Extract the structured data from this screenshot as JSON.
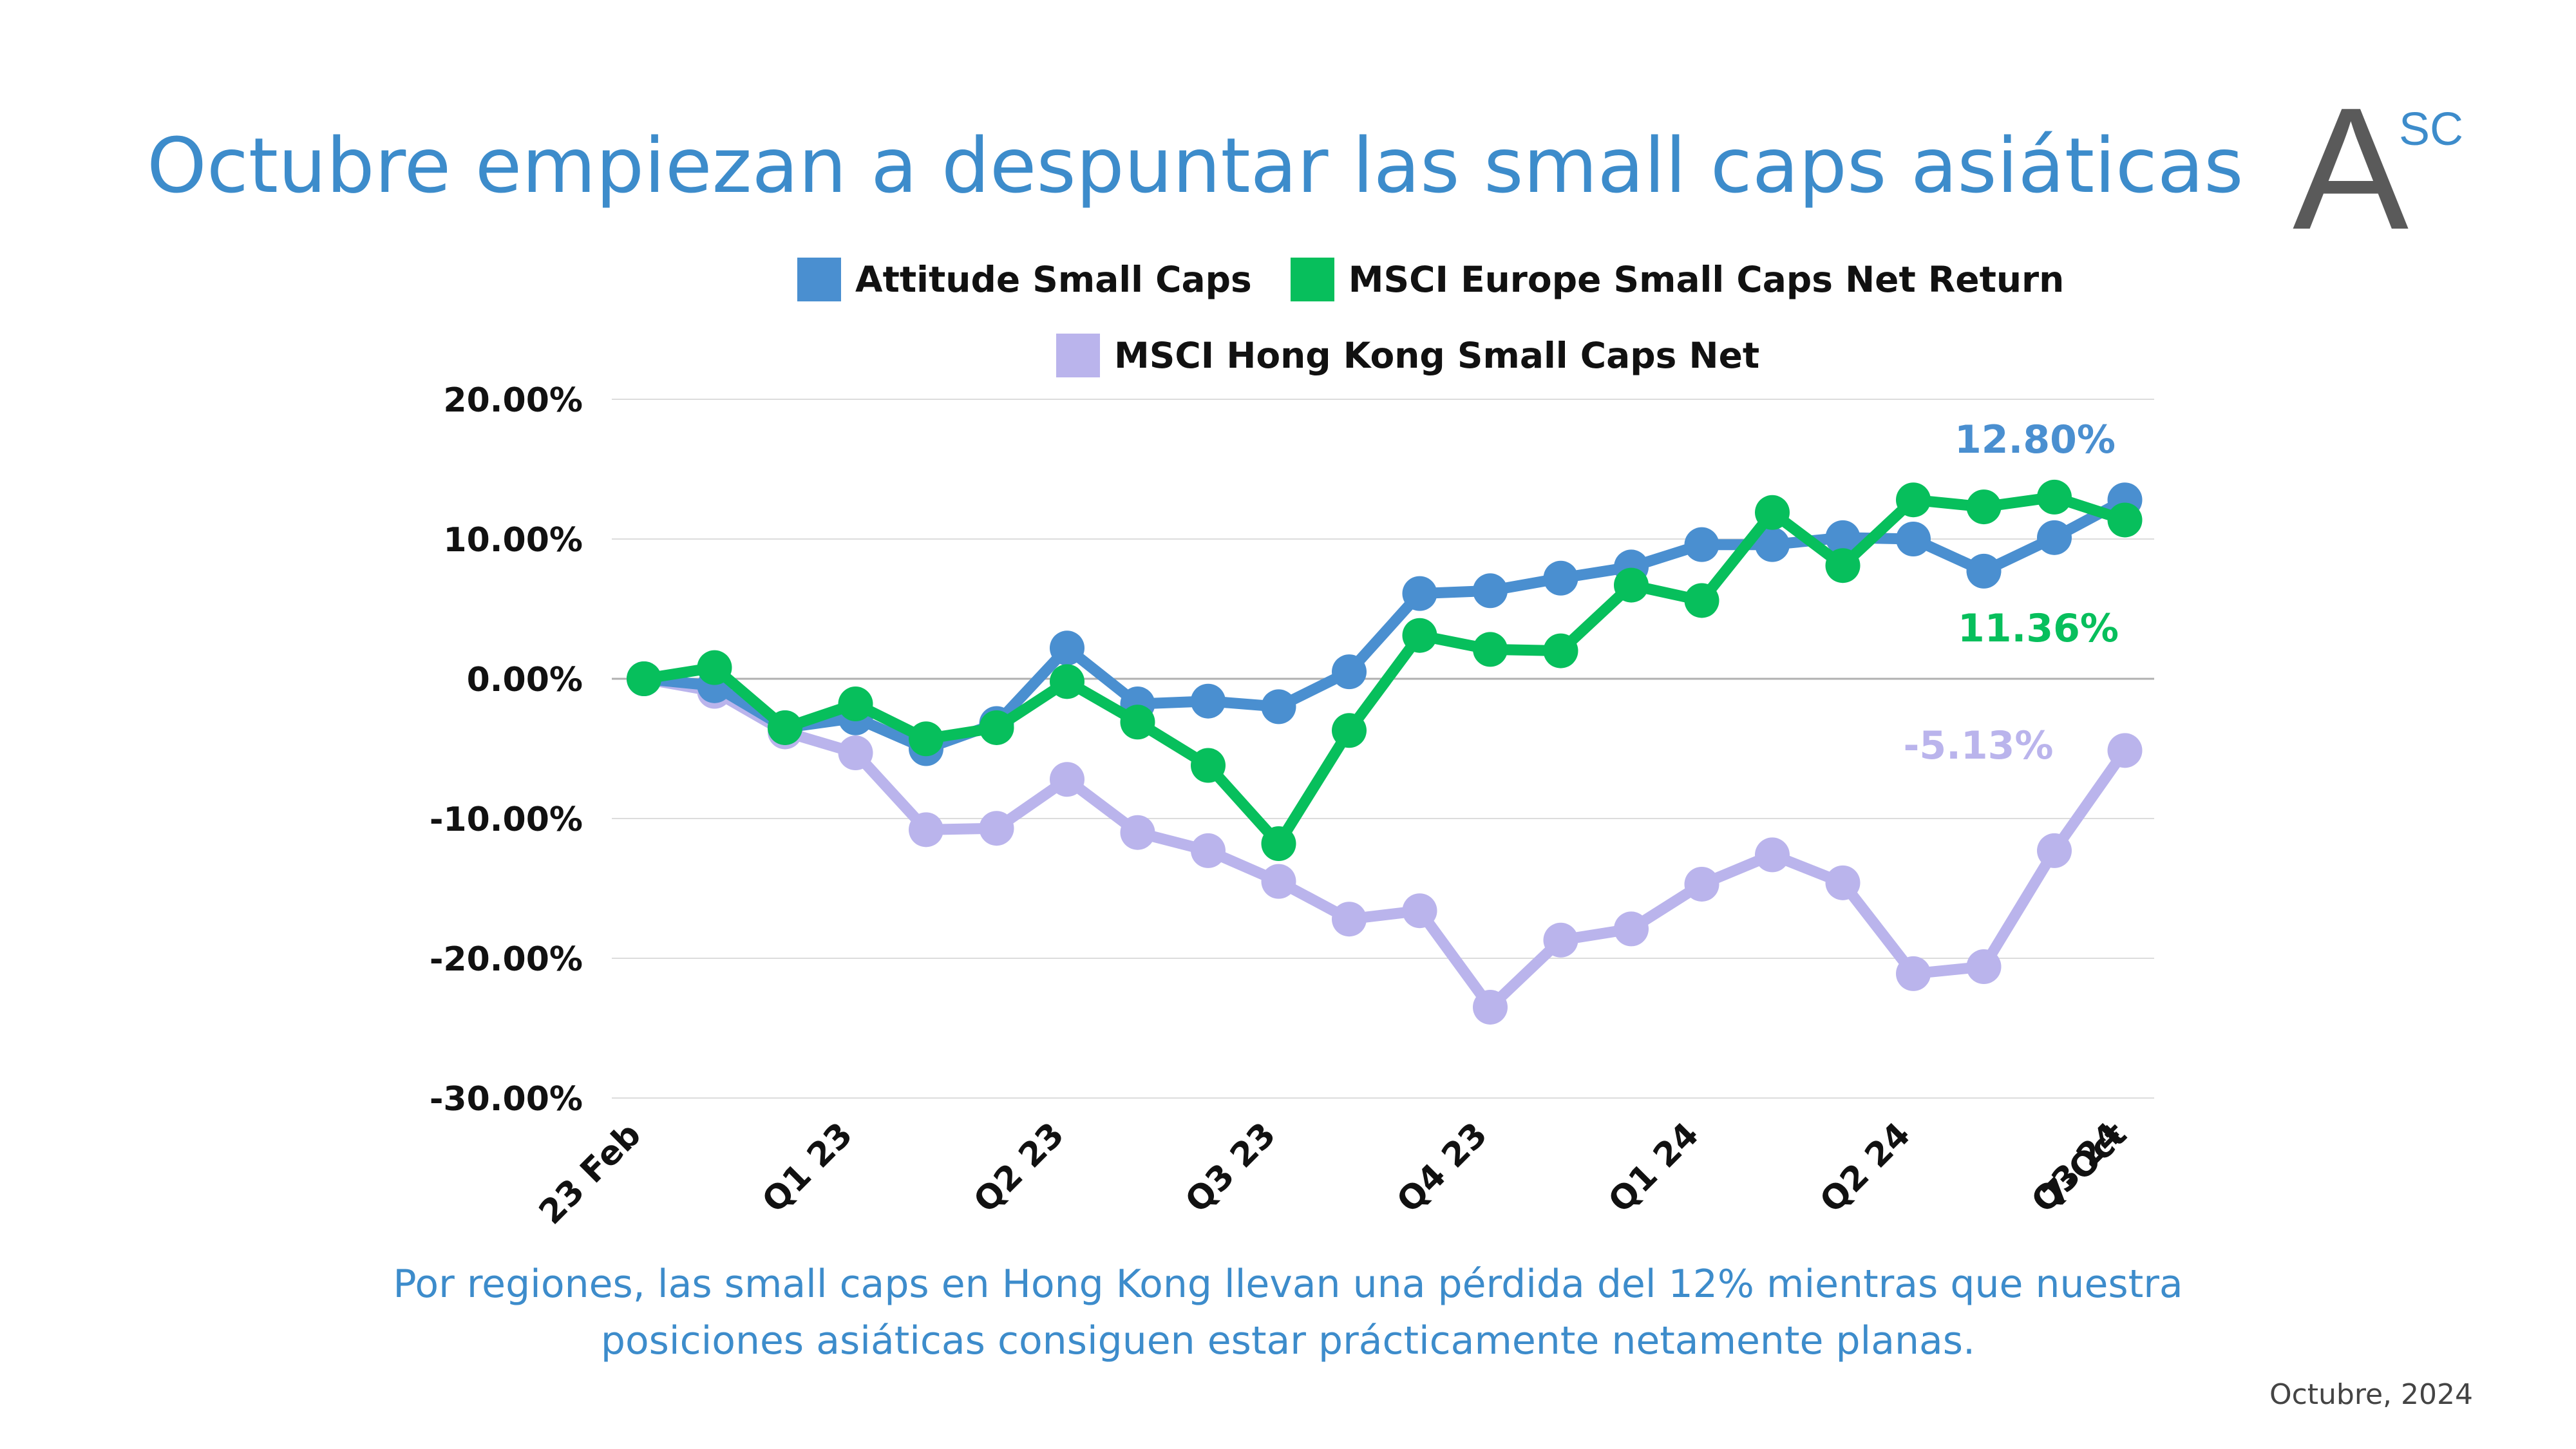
{
  "title": "Octubre empiezan a despuntar las small caps asiáticas",
  "logo": {
    "letter": "A",
    "superscript": "SC"
  },
  "caption": {
    "line1": "Por regiones, las small caps en Hong Kong llevan una pérdida del 12% mientras que nuestra",
    "line2": "posiciones asiáticas consiguen estar prácticamente netamente planas."
  },
  "date": "Octubre, 2024",
  "colors": {
    "title": "#3d8ccb",
    "attitude": "#4a8fd0",
    "europe": "#07bf5c",
    "hongkong": "#bab4ec"
  },
  "chart_data": {
    "type": "line",
    "ylim": [
      -30,
      20
    ],
    "yticks": [
      "20.00%",
      "10.00%",
      "0.00%",
      "-10.00%",
      "-20.00%",
      "-30.00%"
    ],
    "ytick_values": [
      20,
      10,
      0,
      -10,
      -20,
      -30
    ],
    "grid": true,
    "legend_placement": "top",
    "xtick_labels": [
      {
        "index": 0,
        "label": "23 Feb"
      },
      {
        "index": 3,
        "label": "Q1 23"
      },
      {
        "index": 6,
        "label": "Q2 23"
      },
      {
        "index": 9,
        "label": "Q3 23"
      },
      {
        "index": 12,
        "label": "Q4 23"
      },
      {
        "index": 15,
        "label": "Q1 24"
      },
      {
        "index": 18,
        "label": "Q2 24"
      },
      {
        "index": 21,
        "label": "Q3 24"
      },
      {
        "index": 22,
        "label": "7-Oct"
      }
    ],
    "series": [
      {
        "name": "Attitude Small Caps",
        "color": "#4a8fd0",
        "values": [
          0,
          -0.5,
          -3.5,
          -2.8,
          -5.0,
          -3.2,
          2.2,
          -1.8,
          -1.6,
          -2.0,
          0.5,
          6.1,
          6.3,
          7.2,
          8.0,
          9.6,
          9.6,
          10.1,
          10.0,
          7.7,
          10.1,
          12.8
        ],
        "end_label": "12.80%"
      },
      {
        "name": "MSCI Europe Small Caps Net Return",
        "color": "#07bf5c",
        "values": [
          0,
          0.8,
          -3.5,
          -1.8,
          -4.3,
          -3.5,
          -0.2,
          -3.1,
          -6.2,
          -11.8,
          -3.7,
          3.1,
          2.1,
          2.0,
          6.7,
          5.6,
          11.9,
          8.1,
          12.8,
          12.3,
          13.0,
          11.36
        ],
        "end_label": "11.36%"
      },
      {
        "name": "MSCI Hong Kong Small Caps Net",
        "color": "#bab4ec",
        "values": [
          0,
          -0.9,
          -3.8,
          -5.3,
          -10.8,
          -10.7,
          -7.2,
          -11.0,
          -12.3,
          -14.5,
          -17.2,
          -16.6,
          -23.5,
          -18.7,
          -17.9,
          -14.7,
          -12.6,
          -14.6,
          -21.1,
          -20.6,
          -12.3,
          -5.13
        ],
        "end_label": "-5.13%"
      }
    ]
  }
}
